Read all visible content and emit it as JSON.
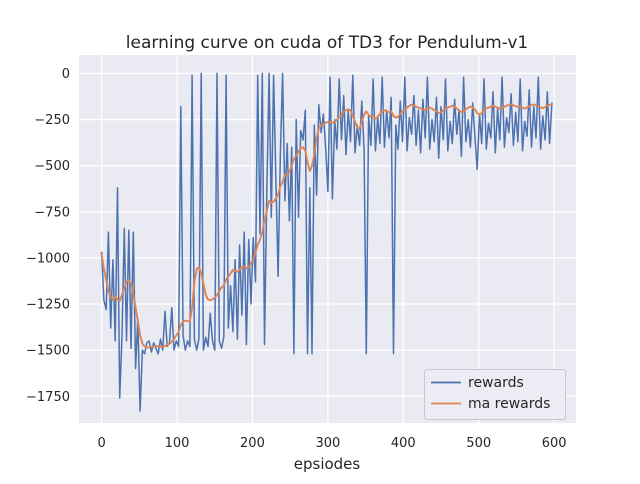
{
  "figure": {
    "background": "#ffffff",
    "plot_background": "#eaeaf2",
    "grid_color": "#ffffff",
    "text_color": "#262626"
  },
  "chart_data": {
    "type": "line",
    "title": "learning curve on cuda of TD3 for Pendulum-v1",
    "xlabel": "epsiodes",
    "ylabel": "",
    "xlim": [
      -30,
      629
    ],
    "ylim": [
      -1895,
      100
    ],
    "grid": true,
    "legend": {
      "position": "lower-right",
      "entries": [
        "rewards",
        "ma rewards"
      ]
    },
    "xticks": {
      "values": [
        0,
        100,
        200,
        300,
        400,
        500,
        600
      ],
      "labels": [
        "0",
        "100",
        "200",
        "300",
        "400",
        "500",
        "600"
      ]
    },
    "yticks": {
      "values": [
        0,
        -250,
        -500,
        -750,
        -1000,
        -1250,
        -1500,
        -1750
      ],
      "labels": [
        "0",
        "−250",
        "−500",
        "−750",
        "−1000",
        "−1250",
        "−1500",
        "−1750"
      ]
    },
    "episodes": [
      0,
      3,
      6,
      9,
      12,
      15,
      18,
      21,
      24,
      27,
      30,
      33,
      36,
      39,
      42,
      45,
      48,
      51,
      54,
      57,
      60,
      63,
      66,
      69,
      72,
      75,
      78,
      81,
      84,
      87,
      90,
      93,
      96,
      99,
      102,
      105,
      108,
      111,
      114,
      117,
      120,
      123,
      126,
      129,
      132,
      135,
      138,
      141,
      144,
      147,
      150,
      153,
      156,
      159,
      162,
      165,
      168,
      171,
      174,
      177,
      180,
      183,
      186,
      189,
      192,
      195,
      198,
      201,
      204,
      207,
      210,
      213,
      216,
      219,
      222,
      225,
      228,
      231,
      234,
      237,
      240,
      243,
      246,
      249,
      252,
      255,
      258,
      261,
      264,
      267,
      270,
      273,
      276,
      279,
      282,
      285,
      288,
      291,
      294,
      297,
      300,
      303,
      306,
      309,
      312,
      315,
      318,
      321,
      324,
      327,
      330,
      333,
      336,
      339,
      342,
      345,
      348,
      351,
      354,
      357,
      360,
      363,
      366,
      369,
      372,
      375,
      378,
      381,
      384,
      387,
      390,
      393,
      396,
      399,
      402,
      405,
      408,
      411,
      414,
      417,
      420,
      423,
      426,
      429,
      432,
      435,
      438,
      441,
      444,
      447,
      450,
      453,
      456,
      459,
      462,
      465,
      468,
      471,
      474,
      477,
      480,
      483,
      486,
      489,
      492,
      495,
      498,
      501,
      504,
      507,
      510,
      513,
      516,
      519,
      522,
      525,
      528,
      531,
      534,
      537,
      540,
      543,
      546,
      549,
      552,
      555,
      558,
      561,
      564,
      567,
      570,
      573,
      576,
      579,
      582,
      585,
      588,
      591,
      594,
      597
    ],
    "series": [
      {
        "name": "rewards",
        "color": "#4c72b0",
        "values": [
          -970,
          -1230,
          -1280,
          -860,
          -1380,
          -1010,
          -1450,
          -620,
          -1760,
          -1420,
          -840,
          -1450,
          -850,
          -1490,
          -860,
          -1600,
          -1330,
          -1830,
          -1500,
          -1520,
          -1460,
          -1450,
          -1510,
          -1460,
          -1490,
          -1520,
          -1440,
          -1500,
          -1290,
          -1480,
          -1460,
          -1270,
          -1500,
          -1450,
          -1480,
          -180,
          -1420,
          -1500,
          -1450,
          -1480,
          -10,
          -1440,
          -1500,
          -1440,
          0,
          -1500,
          -1430,
          -1480,
          -1300,
          -1450,
          -1500,
          0,
          -1450,
          -1490,
          -1430,
          -10,
          -1380,
          -1150,
          -1400,
          -1010,
          -1440,
          -930,
          -1310,
          -860,
          -1470,
          -900,
          -1250,
          -890,
          -1130,
          -10,
          -870,
          0,
          -1470,
          -640,
          0,
          -780,
          -10,
          -560,
          -1100,
          -430,
          0,
          -690,
          -380,
          -800,
          -400,
          -1520,
          -250,
          -780,
          -310,
          -360,
          -200,
          -1520,
          -620,
          -1520,
          -280,
          -660,
          -170,
          -320,
          -220,
          -400,
          -640,
          -20,
          -680,
          -250,
          -410,
          -30,
          -360,
          -120,
          -440,
          -200,
          -370,
          -10,
          -430,
          -280,
          -390,
          -150,
          -420,
          -1520,
          -230,
          -390,
          -30,
          -420,
          -240,
          -380,
          -20,
          -400,
          -200,
          -350,
          -130,
          -1520,
          -280,
          -410,
          -150,
          -370,
          -20,
          -420,
          -240,
          -330,
          -120,
          -390,
          -200,
          -430,
          -140,
          -350,
          -20,
          -410,
          -250,
          -370,
          -130,
          -460,
          -180,
          -360,
          -30,
          -420,
          -260,
          -380,
          -140,
          -330,
          -200,
          -450,
          -20,
          -370,
          -250,
          -400,
          -160,
          -340,
          -520,
          -220,
          -380,
          -30,
          -410,
          -270,
          -350,
          -100,
          -430,
          -190,
          -360,
          -20,
          -400,
          -240,
          -320,
          -110,
          -390,
          -210,
          -370,
          -30,
          -420,
          -260,
          -340,
          -90,
          -400,
          -180,
          -350,
          -20,
          -410,
          -230,
          -360,
          -100,
          -380,
          -160
        ]
      },
      {
        "name": "ma rewards",
        "color": "#dd8452",
        "values": [
          -980,
          -1060,
          -1120,
          -1180,
          -1215,
          -1225,
          -1210,
          -1225,
          -1235,
          -1200,
          -1160,
          -1130,
          -1120,
          -1140,
          -1200,
          -1270,
          -1340,
          -1420,
          -1465,
          -1480,
          -1485,
          -1485,
          -1482,
          -1480,
          -1478,
          -1480,
          -1482,
          -1480,
          -1478,
          -1472,
          -1465,
          -1455,
          -1440,
          -1420,
          -1400,
          -1365,
          -1345,
          -1340,
          -1342,
          -1345,
          -1270,
          -1130,
          -1060,
          -1050,
          -1080,
          -1140,
          -1200,
          -1225,
          -1230,
          -1225,
          -1215,
          -1200,
          -1180,
          -1160,
          -1150,
          -1120,
          -1100,
          -1085,
          -1065,
          -1070,
          -1075,
          -1065,
          -1050,
          -1048,
          -1055,
          -1050,
          -1030,
          -1010,
          -970,
          -930,
          -900,
          -860,
          -800,
          -745,
          -690,
          -700,
          -695,
          -680,
          -655,
          -610,
          -590,
          -550,
          -545,
          -535,
          -500,
          -465,
          -445,
          -425,
          -405,
          -400,
          -420,
          -480,
          -530,
          -500,
          -440,
          -350,
          -300,
          -280,
          -275,
          -268,
          -262,
          -262,
          -268,
          -262,
          -252,
          -238,
          -225,
          -205,
          -198,
          -195,
          -200,
          -230,
          -260,
          -295,
          -300,
          -260,
          -225,
          -205,
          -225,
          -235,
          -230,
          -245,
          -235,
          -220,
          -205,
          -200,
          -205,
          -210,
          -205,
          -230,
          -240,
          -235,
          -220,
          -205,
          -195,
          -185,
          -175,
          -170,
          -175,
          -180,
          -185,
          -190,
          -195,
          -200,
          -195,
          -185,
          -190,
          -200,
          -205,
          -215,
          -210,
          -200,
          -190,
          -185,
          -180,
          -175,
          -180,
          -190,
          -200,
          -210,
          -205,
          -195,
          -185,
          -180,
          -185,
          -195,
          -215,
          -225,
          -215,
          -200,
          -190,
          -185,
          -180,
          -175,
          -180,
          -185,
          -190,
          -185,
          -180,
          -175,
          -170,
          -168,
          -172,
          -178,
          -182,
          -178,
          -185,
          -190,
          -185,
          -178,
          -172,
          -168,
          -172,
          -178,
          -184,
          -188,
          -182,
          -175,
          -170,
          -168
        ]
      }
    ]
  }
}
